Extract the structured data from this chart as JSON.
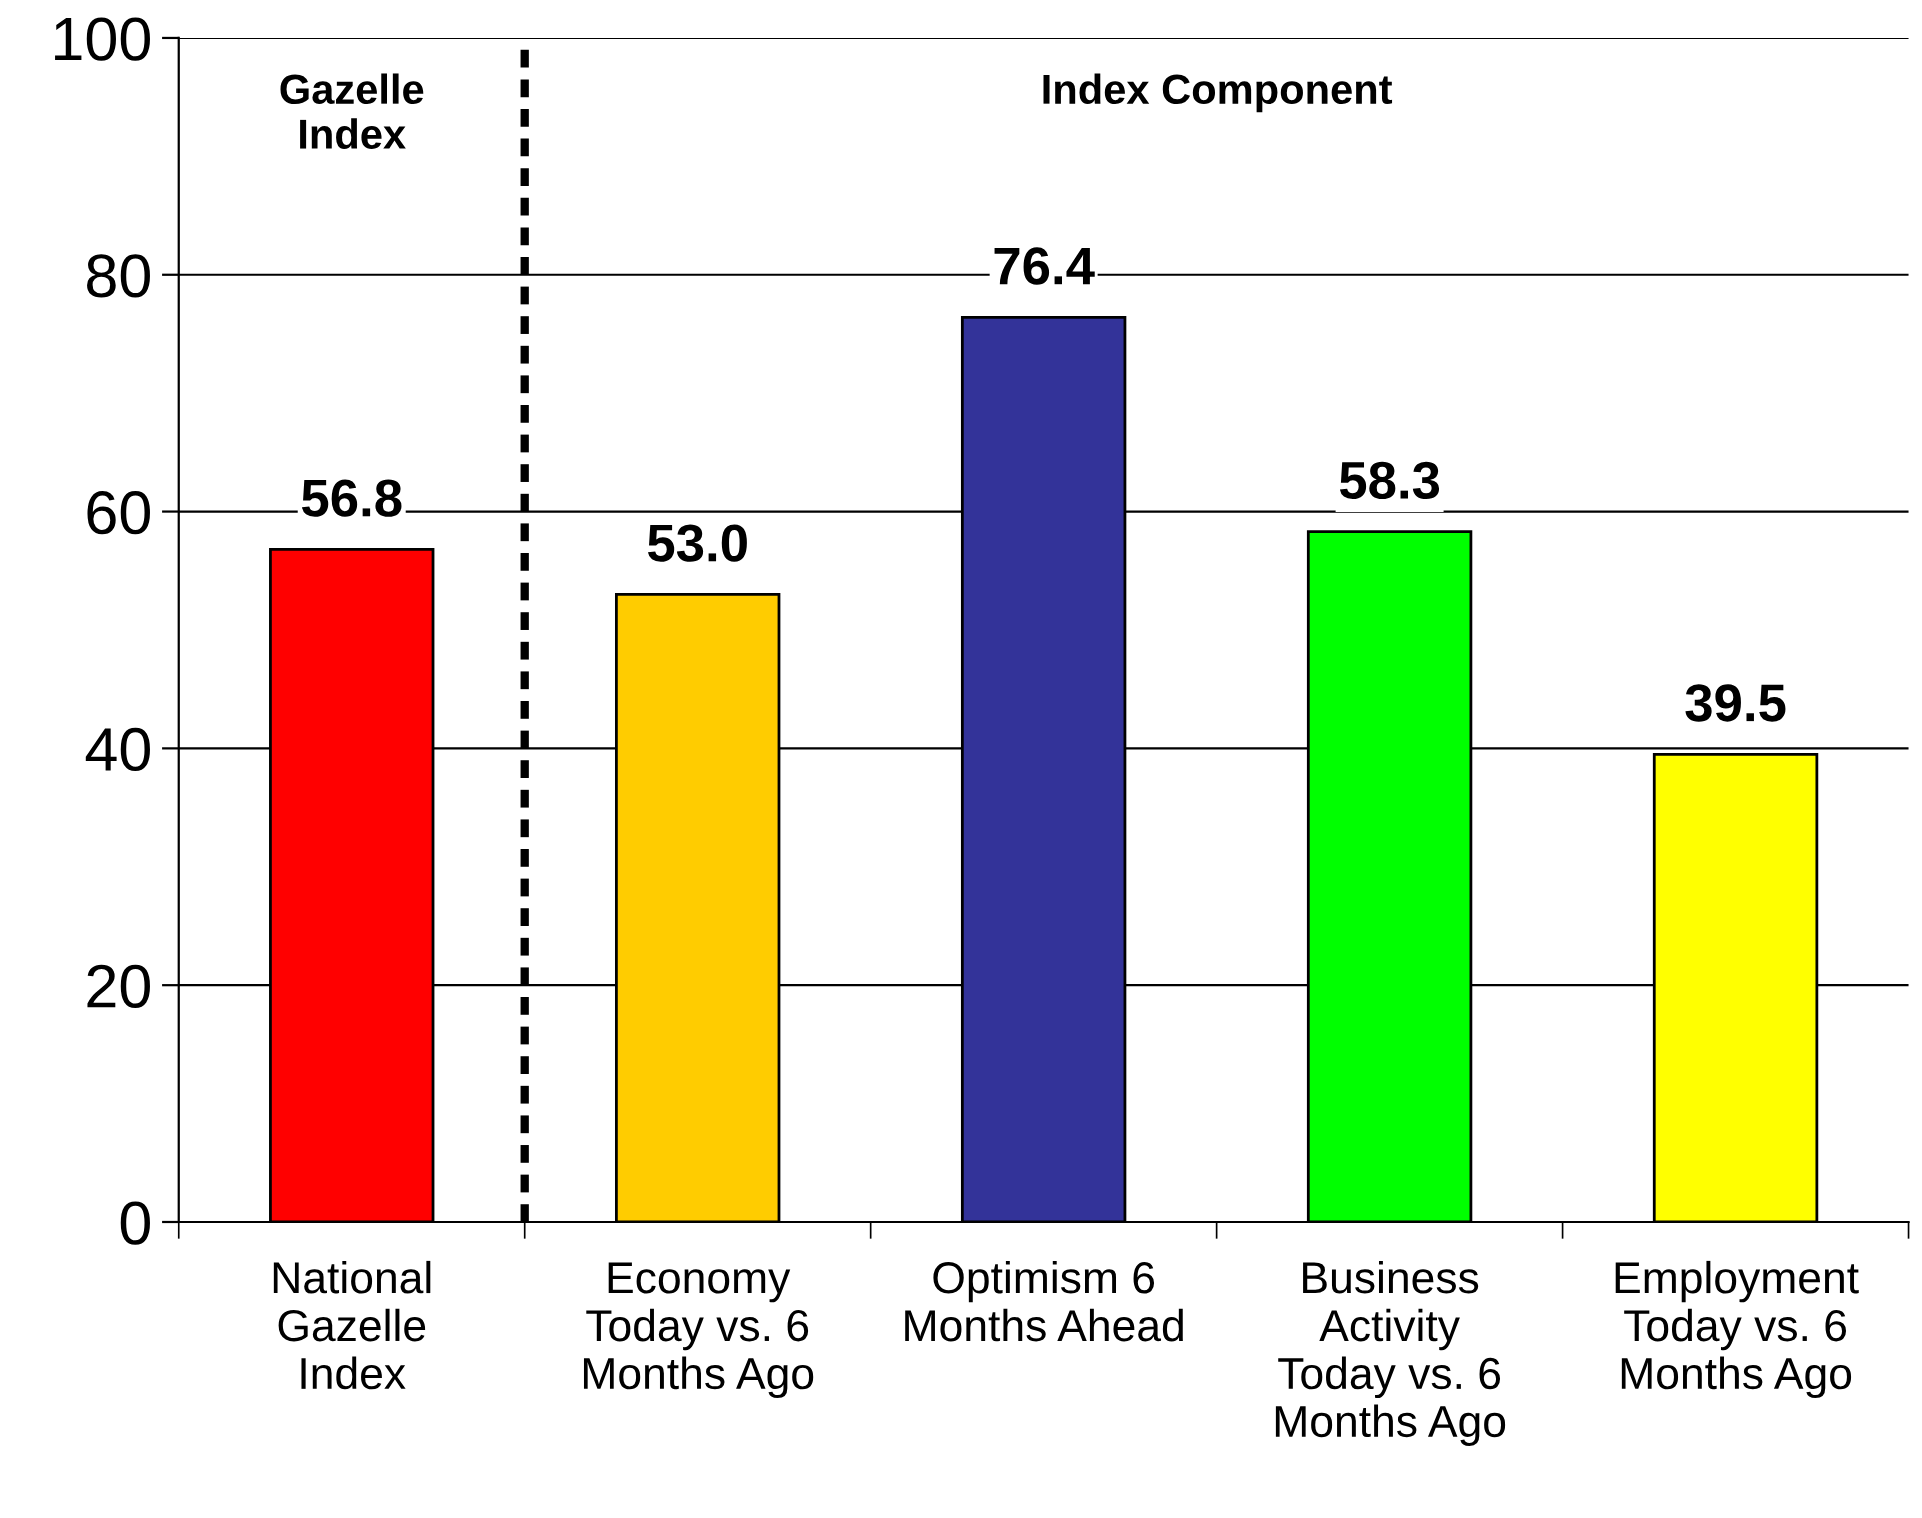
{
  "chart_data": {
    "type": "bar",
    "categories": [
      "National Gazelle Index",
      "Economy Today vs. 6 Months Ago",
      "Optimism 6 Months Ahead",
      "Business Activity Today vs. 6 Months Ago",
      "Employment Today vs. 6 Months Ago"
    ],
    "values": [
      56.8,
      53.0,
      76.4,
      58.3,
      39.5
    ],
    "colors": [
      "#ff0000",
      "#ffcc00",
      "#333399",
      "#00ff00",
      "#ffff00"
    ],
    "value_labels": [
      "56.8",
      "53.0",
      "76.4",
      "58.3",
      "39.5"
    ],
    "ylim": [
      0,
      100
    ],
    "yticks": [
      0,
      20,
      40,
      60,
      80,
      100
    ],
    "grid": "y",
    "annotations": [
      "Gazelle Index",
      "Index Component"
    ]
  }
}
